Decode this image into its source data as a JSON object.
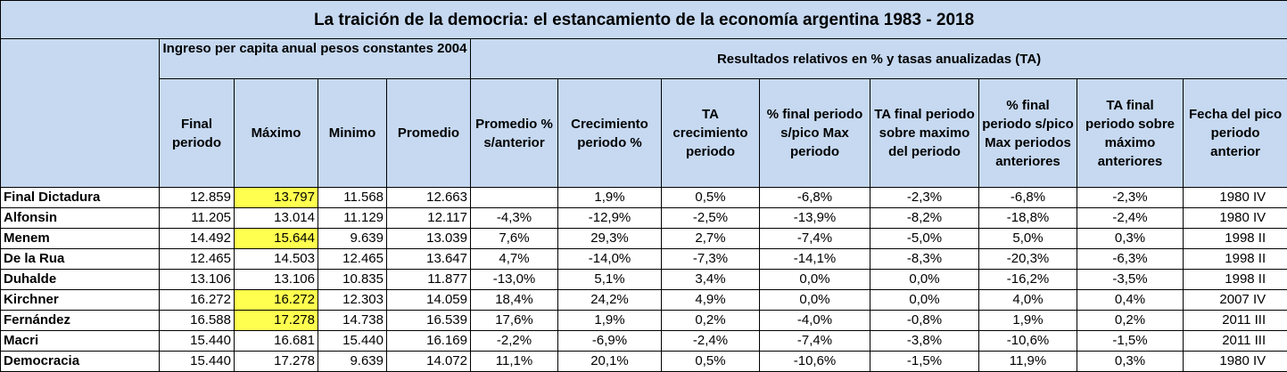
{
  "title": "La traición de la democria: el estancamiento de la economía argentina 1983 - 2018",
  "groups": [
    "Ingreso per capita anual pesos constantes 2004",
    "Resultados relativos en % y tasas anualizadas (TA)"
  ],
  "columns": [
    "Final periodo",
    "Máximo",
    "Minimo",
    "Promedio",
    "Promedio % s/anterior",
    "Crecimiento periodo %",
    "TA crecimiento periodo",
    "% final periodo s/pico Max periodo",
    "TA final periodo sobre maximo del periodo",
    "% final periodo s/pico Max periodos anteriores",
    "TA final periodo sobre máximo anteriores",
    "Fecha del pico periodo anterior"
  ],
  "rows": [
    {
      "name": "Final Dictadura",
      "cells": [
        "12.859",
        "13.797",
        "11.568",
        "12.663",
        null,
        "1,9%",
        "0,5%",
        "-6,8%",
        "-2,3%",
        "-6,8%",
        "-2,3%",
        "1980 IV"
      ]
    },
    {
      "name": "Alfonsin",
      "cells": [
        "11.205",
        "13.014",
        "11.129",
        "12.117",
        "-4,3%",
        "-12,9%",
        "-2,5%",
        "-13,9%",
        "-8,2%",
        "-18,8%",
        "-2,4%",
        "1980 IV"
      ]
    },
    {
      "name": "Menem",
      "cells": [
        "14.492",
        "15.644",
        "9.639",
        "13.039",
        "7,6%",
        "29,3%",
        "2,7%",
        "-7,4%",
        "-5,0%",
        "5,0%",
        "0,3%",
        "1998 II"
      ]
    },
    {
      "name": "De la Rua",
      "cells": [
        "12.465",
        "14.503",
        "12.465",
        "13.647",
        "4,7%",
        "-14,0%",
        "-7,3%",
        "-14,1%",
        "-8,3%",
        "-20,3%",
        "-6,3%",
        "1998 II"
      ]
    },
    {
      "name": "Duhalde",
      "cells": [
        "13.106",
        "13.106",
        "10.835",
        "11.877",
        "-13,0%",
        "5,1%",
        "3,4%",
        "0,0%",
        "0,0%",
        "-16,2%",
        "-3,5%",
        "1998 II"
      ]
    },
    {
      "name": "Kirchner",
      "cells": [
        "16.272",
        "16.272",
        "12.303",
        "14.059",
        "18,4%",
        "24,2%",
        "4,9%",
        "0,0%",
        "0,0%",
        "4,0%",
        "0,4%",
        "2007 IV"
      ]
    },
    {
      "name": "Fernández",
      "cells": [
        "16.588",
        "17.278",
        "14.738",
        "16.539",
        "17,6%",
        "1,9%",
        "0,2%",
        "-4,0%",
        "-0,8%",
        "1,9%",
        "0,2%",
        "2011 III"
      ]
    },
    {
      "name": "Macri",
      "cells": [
        "15.440",
        "16.681",
        "15.440",
        "16.169",
        "-2,2%",
        "-6,9%",
        "-2,4%",
        "-7,4%",
        "-3,8%",
        "-10,6%",
        "-1,5%",
        "2011 III"
      ]
    },
    {
      "name": "Democracia",
      "cells": [
        "15.440",
        "17.278",
        "9.639",
        "14.072",
        "11,1%",
        "20,1%",
        "0,5%",
        "-10,6%",
        "-1,5%",
        "11,9%",
        "0,3%",
        "1980 IV"
      ]
    }
  ]
}
